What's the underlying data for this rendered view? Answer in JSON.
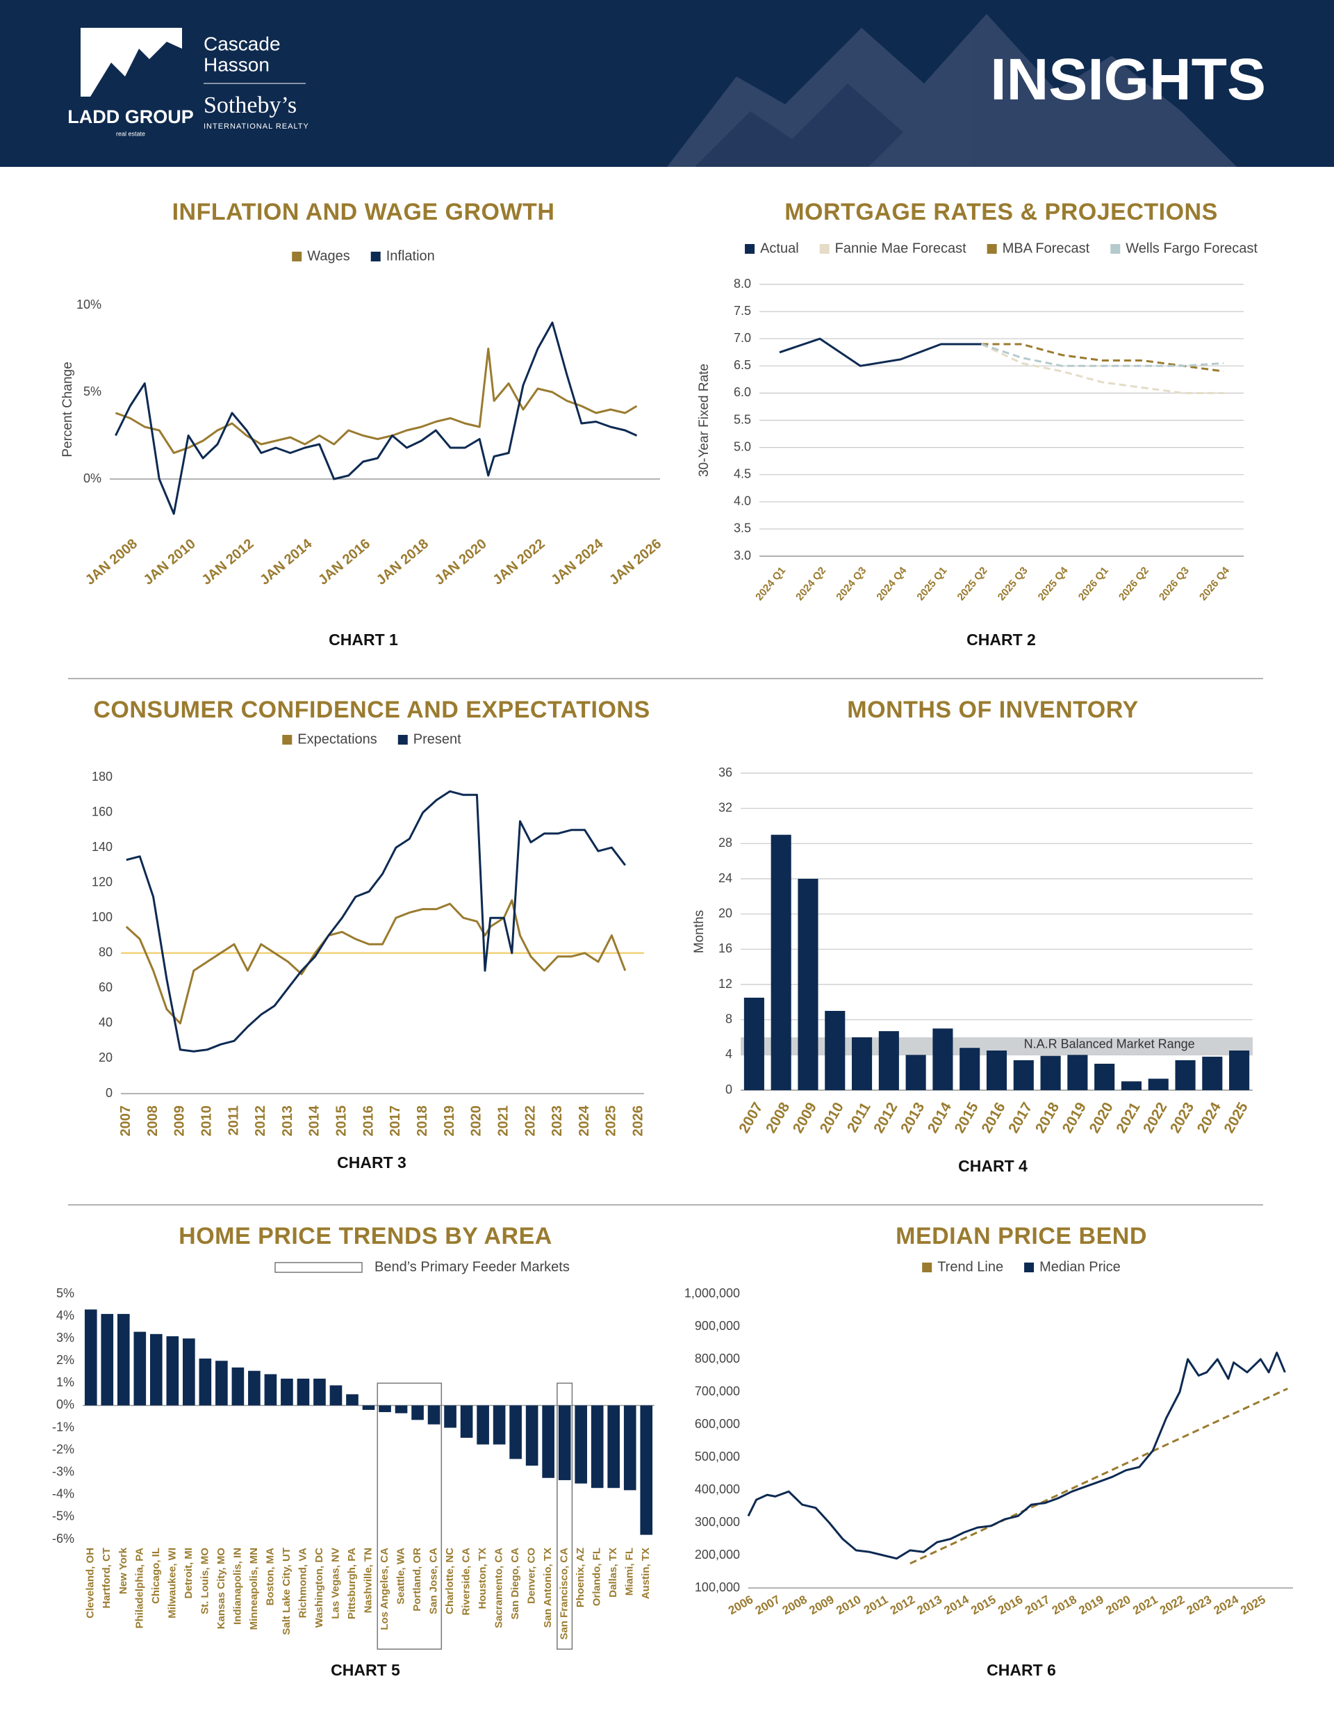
{
  "header": {
    "logo": "LADD GROUP",
    "logo_sub": "real estate",
    "brand_1": "Cascade",
    "brand_2": "Hasson",
    "brand_3": "Sotheby’s",
    "brand_4": "INTERNATIONAL REALTY",
    "title": "INSIGHTS"
  },
  "chart_data": [
    {
      "type": "line",
      "title": "INFLATION AND WAGE GROWTH",
      "caption": "CHART 1",
      "y_label": "Percent Change",
      "grid": false,
      "legend": "top",
      "x": [
        2007.5,
        2008,
        2008.5,
        2009,
        2009.5,
        2010,
        2010.5,
        2011,
        2011.5,
        2012,
        2012.5,
        2013,
        2013.5,
        2014,
        2014.5,
        2015,
        2015.5,
        2016,
        2016.5,
        2017,
        2017.5,
        2018,
        2018.5,
        2019,
        2019.5,
        2020,
        2020.3,
        2020.5,
        2021,
        2021.5,
        2022,
        2022.5,
        2023,
        2023.5,
        2024,
        2024.5,
        2025,
        2025.4
      ],
      "xlim": [
        2007.3,
        2026.2
      ],
      "xticks": [
        {
          "value": 2008,
          "label": "JAN 2008"
        },
        {
          "value": 2010,
          "label": "JAN 2010"
        },
        {
          "value": 2012,
          "label": "JAN 2012"
        },
        {
          "value": 2014,
          "label": "JAN 2014"
        },
        {
          "value": 2016,
          "label": "JAN 2016"
        },
        {
          "value": 2018,
          "label": "JAN 2018"
        },
        {
          "value": 2020,
          "label": "JAN 2020"
        },
        {
          "value": 2022,
          "label": "JAN 2022"
        },
        {
          "value": 2024,
          "label": "JAN 2024"
        },
        {
          "value": 2026,
          "label": "JAN 2026"
        }
      ],
      "ylim": [
        -3,
        11
      ],
      "yticks": [
        {
          "value": 0,
          "label": "0%"
        },
        {
          "value": 5,
          "label": "5%"
        },
        {
          "value": 10,
          "label": "10%"
        }
      ],
      "series": [
        {
          "name": "Wages",
          "color": "#9a7b2f",
          "values": [
            3.8,
            3.5,
            3.0,
            2.8,
            1.5,
            1.8,
            2.2,
            2.8,
            3.2,
            2.5,
            2.0,
            2.2,
            2.4,
            2.0,
            2.5,
            2.0,
            2.8,
            2.5,
            2.3,
            2.5,
            2.8,
            3.0,
            3.3,
            3.5,
            3.2,
            3.0,
            7.5,
            4.5,
            5.5,
            4.0,
            5.2,
            5.0,
            4.5,
            4.2,
            3.8,
            4.0,
            3.8,
            4.2
          ]
        },
        {
          "name": "Inflation",
          "color": "#0d2a52",
          "values": [
            2.5,
            4.2,
            5.5,
            0.0,
            -2.0,
            2.5,
            1.2,
            2.0,
            3.8,
            2.8,
            1.5,
            1.8,
            1.5,
            1.8,
            2.0,
            0.0,
            0.2,
            1.0,
            1.2,
            2.5,
            1.8,
            2.2,
            2.8,
            1.8,
            1.8,
            2.3,
            0.2,
            1.3,
            1.5,
            5.4,
            7.5,
            9.0,
            6.0,
            3.2,
            3.3,
            3.0,
            2.8,
            2.5
          ]
        }
      ]
    },
    {
      "type": "line",
      "title": "MORTGAGE RATES & PROJECTIONS",
      "caption": "CHART 2",
      "y_label": "30-Year Fixed Rate",
      "grid": true,
      "legend": "top",
      "categories": [
        "2024 Q1",
        "2024 Q2",
        "2024 Q3",
        "2024 Q4",
        "2025 Q1",
        "2025 Q2",
        "2025 Q3",
        "2025 Q4",
        "2026 Q1",
        "2026 Q2",
        "2026 Q3",
        "2026 Q4"
      ],
      "ylim": [
        3,
        8
      ],
      "yticks": [
        {
          "value": 3,
          "label": "3.0"
        },
        3.5,
        {
          "value": 4,
          "label": "4.0"
        },
        4.5,
        {
          "value": 5,
          "label": "5.0"
        },
        5.5,
        {
          "value": 6,
          "label": "6.0"
        },
        6.5,
        {
          "value": 7,
          "label": "7.0"
        },
        7.5,
        {
          "value": 8,
          "label": "8.0"
        }
      ],
      "series": [
        {
          "name": "Actual",
          "color": "#0d2a52",
          "dashed": false,
          "values": [
            6.75,
            7.0,
            6.5,
            6.62,
            6.9,
            6.9,
            null,
            null,
            null,
            null,
            null,
            null
          ]
        },
        {
          "name": "Fannie Mae Forecast",
          "color": "#e4dcc6",
          "dashed": true,
          "values": [
            null,
            null,
            null,
            null,
            null,
            6.9,
            6.55,
            6.4,
            6.2,
            6.1,
            6.0,
            6.0
          ]
        },
        {
          "name": "MBA Forecast",
          "color": "#9a7b2f",
          "dashed": true,
          "values": [
            null,
            null,
            null,
            null,
            null,
            6.9,
            6.9,
            6.7,
            6.6,
            6.6,
            6.5,
            6.4
          ]
        },
        {
          "name": "Wells Fargo Forecast",
          "color": "#b5cacd",
          "dashed": true,
          "values": [
            null,
            null,
            null,
            null,
            null,
            6.9,
            6.65,
            6.5,
            6.5,
            6.5,
            6.5,
            6.55
          ]
        }
      ]
    },
    {
      "type": "line",
      "title": "CONSUMER CONFIDENCE AND EXPECTATIONS",
      "caption": "CHART 3",
      "grid": false,
      "legend": "top",
      "x": [
        2007,
        2007.5,
        2008,
        2008.5,
        2009,
        2009.5,
        2010,
        2010.5,
        2011,
        2011.5,
        2012,
        2012.5,
        2013,
        2013.5,
        2014,
        2014.5,
        2015,
        2015.5,
        2016,
        2016.5,
        2017,
        2017.5,
        2018,
        2018.5,
        2019,
        2019.5,
        2020,
        2020.3,
        2020.5,
        2021,
        2021.3,
        2021.6,
        2022,
        2022.5,
        2023,
        2023.5,
        2024,
        2024.5,
        2025,
        2025.5
      ],
      "xlim": [
        2006.8,
        2026.2
      ],
      "xticks": [
        2007,
        2008,
        2009,
        2010,
        2011,
        2012,
        2013,
        2014,
        2015,
        2016,
        2017,
        2018,
        2019,
        2020,
        2021,
        2022,
        2023,
        2024,
        2025,
        2026
      ],
      "ylim": [
        0,
        180
      ],
      "yticks": [
        0,
        20,
        40,
        60,
        80,
        100,
        120,
        140,
        160,
        180
      ],
      "reference_line": {
        "value": 80,
        "color": "#f2d27a"
      },
      "series": [
        {
          "name": "Expectations",
          "color": "#9a7b2f",
          "values": [
            95,
            88,
            70,
            48,
            40,
            70,
            75,
            80,
            85,
            70,
            85,
            80,
            75,
            68,
            80,
            90,
            92,
            88,
            85,
            85,
            100,
            103,
            105,
            105,
            108,
            100,
            98,
            90,
            95,
            100,
            110,
            90,
            78,
            70,
            78,
            78,
            80,
            75,
            90,
            70
          ]
        },
        {
          "name": "Present",
          "color": "#0d2a52",
          "values": [
            133,
            135,
            112,
            65,
            25,
            24,
            25,
            28,
            30,
            38,
            45,
            50,
            60,
            70,
            78,
            90,
            100,
            112,
            115,
            125,
            140,
            145,
            160,
            167,
            172,
            170,
            170,
            70,
            100,
            100,
            80,
            155,
            143,
            148,
            148,
            150,
            150,
            138,
            140,
            130
          ]
        }
      ]
    },
    {
      "type": "bar",
      "title": "MONTHS OF INVENTORY",
      "caption": "CHART 4",
      "y_label": "Months",
      "grid": true,
      "color": "#0d2a52",
      "categories": [
        "2007",
        "2008",
        "2009",
        "2010",
        "2011",
        "2012",
        "2013",
        "2014",
        "2015",
        "2016",
        "2017",
        "2018",
        "2019",
        "2020",
        "2021",
        "2022",
        "2023",
        "2024",
        "2025"
      ],
      "values": [
        10.5,
        29,
        24,
        9,
        6,
        6.7,
        4,
        7,
        4.8,
        4.5,
        3.4,
        3.9,
        4,
        3,
        1,
        1.3,
        3.4,
        3.8,
        4.5
      ],
      "ylim": [
        0,
        36
      ],
      "yticks": [
        0,
        4,
        8,
        12,
        16,
        20,
        24,
        28,
        32,
        36
      ],
      "band": {
        "range": [
          4,
          6
        ],
        "label": "N.A.R Balanced Market Range",
        "color": "#c6c9cd"
      }
    },
    {
      "type": "bar",
      "title": "HOME PRICE TRENDS BY AREA",
      "caption": "CHART 5",
      "grid": false,
      "color": "#0d2a52",
      "highlight_label": "Bend’s Primary Feeder Markets",
      "highlight": [
        "Los Angeles, CA",
        "Seattle, WA",
        "Portland, OR",
        "San Jose, CA",
        "San Francisco, CA"
      ],
      "categories": [
        "Cleveland, OH",
        "Hartford, CT",
        "New York",
        "Philadelphia, PA",
        "Chicago, IL",
        "Milwaukee, WI",
        "Detroit, MI",
        "St. Louis, MO",
        "Kansas City, MO",
        "Indianapolis, IN",
        "Minneapolis, MN",
        "Boston, MA",
        "Salt Lake City, UT",
        "Richmond, VA",
        "Washington, DC",
        "Las Vegas, NV",
        "Pittsburgh, PA",
        "Nashville, TN",
        "Los Angeles, CA",
        "Seattle, WA",
        "Portland, OR",
        "San Jose, CA",
        "Charlotte, NC",
        "Riverside, CA",
        "Houston, TX",
        "Sacramento, CA",
        "San Diego, CA",
        "Denver, CO",
        "San Antonio, TX",
        "San Francisco, CA",
        "Phoenix, AZ",
        "Orlando, FL",
        "Dallas, TX",
        "Miami, FL",
        "Austin, TX"
      ],
      "values": [
        4.3,
        4.1,
        4.1,
        3.3,
        3.2,
        3.1,
        3.0,
        2.1,
        2.0,
        1.7,
        1.55,
        1.4,
        1.2,
        1.2,
        1.2,
        0.9,
        0.5,
        -0.2,
        -0.3,
        -0.35,
        -0.65,
        -0.85,
        -1.0,
        -1.45,
        -1.75,
        -1.75,
        -2.4,
        -2.7,
        -3.25,
        -3.35,
        -3.5,
        -3.7,
        -3.7,
        -3.8,
        -5.8
      ],
      "ylim": [
        -6,
        5
      ],
      "yticks": [
        {
          "value": 5,
          "label": "5%"
        },
        {
          "value": 4,
          "label": "4%"
        },
        {
          "value": 3,
          "label": "3%"
        },
        {
          "value": 2,
          "label": "2%"
        },
        {
          "value": 1,
          "label": "1%"
        },
        {
          "value": 0,
          "label": "0%"
        },
        {
          "value": -1,
          "label": "-1%"
        },
        {
          "value": -2,
          "label": "-2%"
        },
        {
          "value": -3,
          "label": "-3%"
        },
        {
          "value": -4,
          "label": "-4%"
        },
        {
          "value": -5,
          "label": "-5%"
        },
        {
          "value": -6,
          "label": "-6%"
        }
      ]
    },
    {
      "type": "line",
      "title": "MEDIAN PRICE BEND",
      "caption": "CHART 6",
      "grid": false,
      "legend": "top",
      "xlim": [
        2006,
        2026.2
      ],
      "xticks": [
        2006,
        2007,
        2008,
        2009,
        2010,
        2011,
        2012,
        2013,
        2014,
        2015,
        2016,
        2017,
        2018,
        2019,
        2020,
        2021,
        2022,
        2023,
        2024,
        2025
      ],
      "ylim": [
        100000,
        1000000
      ],
      "yticks": [
        {
          "value": 100000,
          "label": "100,000"
        },
        {
          "value": 200000,
          "label": "200,000"
        },
        {
          "value": 300000,
          "label": "300,000"
        },
        {
          "value": 400000,
          "label": "400,000"
        },
        {
          "value": 500000,
          "label": "500,000"
        },
        {
          "value": 600000,
          "label": "600,000"
        },
        {
          "value": 700000,
          "label": "700,000"
        },
        {
          "value": 800000,
          "label": "800,000"
        },
        {
          "value": 900000,
          "label": "900,000"
        },
        {
          "value": 1000000,
          "label": "1,000,000"
        }
      ],
      "series": [
        {
          "name": "Trend Line",
          "color": "#9a7b2f",
          "dashed": true,
          "x": [
            2012,
            2026
          ],
          "values": [
            175000,
            710000
          ]
        },
        {
          "name": "Median Price",
          "color": "#0d2a52",
          "dashed": false,
          "x": [
            2006,
            2006.3,
            2006.7,
            2007,
            2007.5,
            2008,
            2008.5,
            2009,
            2009.5,
            2010,
            2010.5,
            2011,
            2011.5,
            2012,
            2012.5,
            2013,
            2013.5,
            2014,
            2014.5,
            2015,
            2015.5,
            2016,
            2016.5,
            2017,
            2017.5,
            2018,
            2018.5,
            2019,
            2019.5,
            2020,
            2020.5,
            2021,
            2021.5,
            2022,
            2022.3,
            2022.7,
            2023,
            2023.4,
            2023.8,
            2024,
            2024.5,
            2025,
            2025.3,
            2025.6,
            2025.9
          ],
          "values": [
            320000,
            370000,
            385000,
            380000,
            395000,
            355000,
            345000,
            300000,
            250000,
            215000,
            210000,
            200000,
            190000,
            215000,
            210000,
            240000,
            250000,
            270000,
            285000,
            290000,
            310000,
            320000,
            355000,
            360000,
            375000,
            395000,
            410000,
            425000,
            440000,
            460000,
            470000,
            520000,
            620000,
            700000,
            800000,
            750000,
            760000,
            800000,
            740000,
            790000,
            760000,
            800000,
            760000,
            820000,
            760000
          ]
        }
      ]
    }
  ]
}
